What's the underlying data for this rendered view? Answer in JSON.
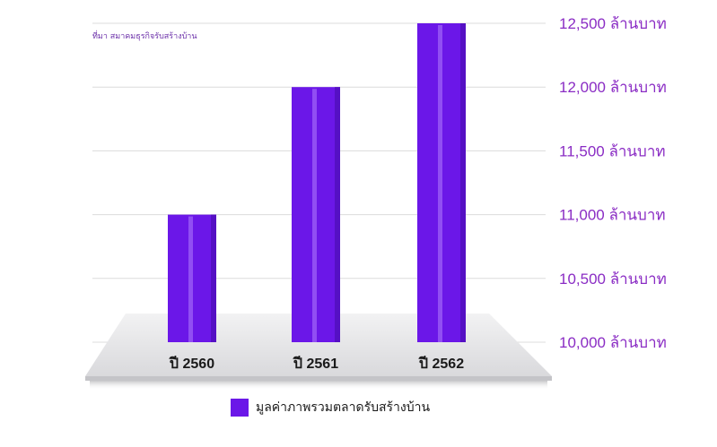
{
  "source": "ที่มา สมาคมธุรกิจรับสร้างบ้าน",
  "legend_label": "มูลค่าภาพรวมตลาดรับสร้างบ้าน",
  "colors": {
    "bar": "#6b17e8",
    "bar_highlight": "#9b5cf5",
    "tick_text": "#8a2cc4",
    "grid": "#dcdcdc",
    "platform": "#e4e4e6",
    "platform_edge": "#bdbdc0"
  },
  "chart_data": {
    "type": "bar",
    "categories": [
      "ปี 2560",
      "ปี 2561",
      "ปี 2562"
    ],
    "series": [
      {
        "values": [
          11000,
          12000,
          12500
        ]
      }
    ],
    "ylim": [
      10000,
      12500
    ],
    "yticks": [
      10000,
      10500,
      11000,
      11500,
      12000,
      12500
    ],
    "ytick_labels": [
      "10,000 ล้านบาท",
      "10,500 ล้านบาท",
      "11,000 ล้านบาท",
      "11,500 ล้านบาท",
      "12,000 ล้านบาท",
      "12,500 ล้านบาท"
    ],
    "grid": true
  }
}
